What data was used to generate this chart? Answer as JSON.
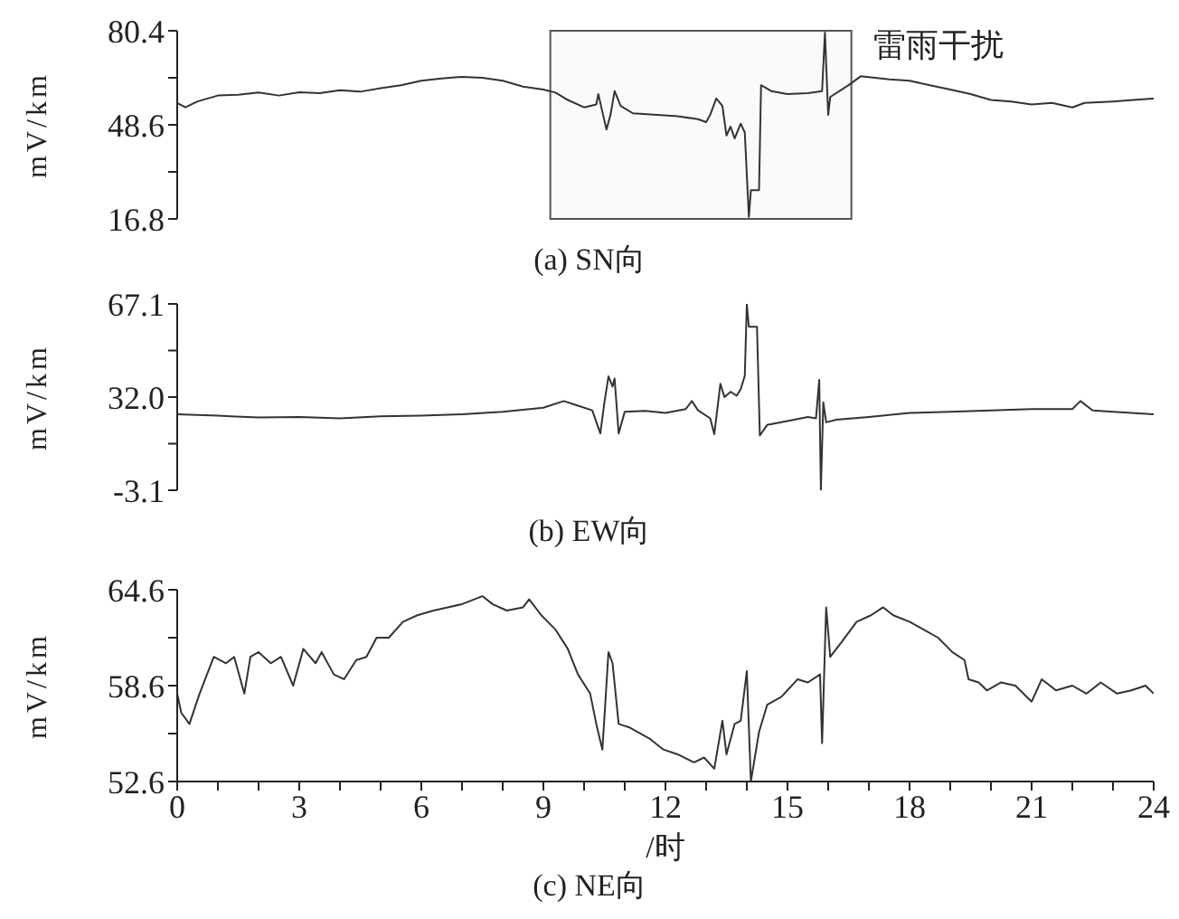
{
  "chart_data": [
    {
      "type": "line",
      "title": "(a) SN向",
      "ylabel": "mV/km",
      "xlim": [
        0,
        24
      ],
      "ylim": [
        16.8,
        80.4
      ],
      "yticks": [
        16.8,
        {
          "value": 32.7,
          "label": null
        },
        48.6,
        {
          "value": 64.5,
          "label": null
        },
        80.4
      ],
      "tick_labels": "y",
      "bands": [
        {
          "axis": "x",
          "from": 9.17,
          "to": 16.57,
          "label": "雷雨干扰",
          "color": "#555555"
        }
      ],
      "series": [
        {
          "color": "#333333",
          "x": [
            0,
            0.2,
            0.5,
            1,
            1.5,
            2,
            2.5,
            3,
            3.5,
            4,
            4.5,
            5,
            5.5,
            6,
            6.5,
            7,
            7.5,
            8,
            8.5,
            9,
            9.3,
            9.6,
            10,
            10.3,
            10.35,
            10.45,
            10.55,
            10.65,
            10.75,
            10.9,
            11.2,
            11.8,
            12.3,
            12.8,
            13.0,
            13.1,
            13.25,
            13.4,
            13.5,
            13.6,
            13.7,
            13.85,
            13.95,
            14.05,
            14.1,
            14.3,
            14.35,
            14.6,
            15,
            15.5,
            15.85,
            15.92,
            16.0,
            16.05,
            16.5,
            16.8,
            17.5,
            18,
            18.5,
            19,
            19.5,
            20,
            20.5,
            21,
            21.5,
            22,
            22.3,
            23,
            23.5,
            24
          ],
          "values": [
            56.0,
            54.5,
            56.5,
            58.5,
            58.8,
            59.5,
            58.5,
            59.6,
            59.3,
            60.3,
            59.8,
            61,
            62,
            63.5,
            64.3,
            64.8,
            64.5,
            63.5,
            61.5,
            60.5,
            59.5,
            57,
            54.5,
            55.5,
            59,
            53,
            47,
            52,
            60,
            55,
            52.5,
            52,
            51.5,
            50.5,
            49.5,
            52,
            57.5,
            55,
            45,
            48,
            44,
            49,
            46,
            17.5,
            26.5,
            26.5,
            62,
            60,
            59,
            59.3,
            60,
            79.8,
            52,
            58,
            62,
            65,
            64,
            63.5,
            62,
            60.5,
            59,
            57,
            56.5,
            55.5,
            56,
            54.5,
            56,
            56.5,
            57,
            57.5
          ]
        }
      ]
    },
    {
      "type": "line",
      "title": "(b) EW向",
      "ylabel": "mV/km",
      "xlim": [
        0,
        24
      ],
      "ylim": [
        -3.1,
        67.1
      ],
      "yticks": [
        -3.1,
        {
          "value": 14.45,
          "label": null
        },
        {
          "value": 32,
          "label": "32.0"
        },
        {
          "value": 49.55,
          "label": null
        },
        67.1
      ],
      "tick_labels": "y",
      "series": [
        {
          "color": "#333333",
          "x": [
            0,
            1,
            2,
            3,
            4,
            5,
            6,
            7,
            8,
            9,
            9.5,
            9.8,
            10.2,
            10.4,
            10.5,
            10.6,
            10.7,
            10.75,
            10.85,
            11,
            11.5,
            12,
            12.5,
            12.65,
            12.8,
            13.1,
            13.2,
            13.35,
            13.45,
            13.6,
            13.75,
            13.85,
            13.95,
            14.0,
            14.05,
            14.25,
            14.32,
            14.5,
            15,
            15.5,
            15.7,
            15.78,
            15.82,
            15.88,
            15.95,
            16.2,
            17,
            18,
            19,
            20,
            21,
            22,
            22.2,
            22.5,
            23,
            24
          ],
          "values": [
            25.5,
            25,
            24.3,
            24.5,
            24,
            24.8,
            25,
            25.5,
            26.5,
            28,
            30.5,
            29,
            27,
            18.3,
            30,
            39.8,
            36,
            39,
            18.3,
            26.5,
            26.8,
            26,
            27.5,
            30.5,
            27,
            24,
            18,
            37,
            32,
            34,
            32.5,
            35,
            40,
            67.1,
            58.5,
            58.5,
            17.5,
            21.5,
            23,
            24.5,
            24,
            38.5,
            -3.1,
            30,
            22.5,
            23.5,
            24.5,
            26,
            26.5,
            27,
            27.5,
            27.5,
            30.5,
            27,
            26.5,
            25.5
          ]
        }
      ]
    },
    {
      "type": "line",
      "title": "(c) NE向",
      "xlabel": "/时",
      "ylabel": "mV/km",
      "xlim": [
        0,
        24
      ],
      "xticks": [
        0,
        {
          "value": 1,
          "label": null
        },
        {
          "value": 2,
          "label": null
        },
        3,
        {
          "value": 4,
          "label": null
        },
        {
          "value": 5,
          "label": null
        },
        6,
        {
          "value": 7,
          "label": null
        },
        {
          "value": 8,
          "label": null
        },
        9,
        {
          "value": 10,
          "label": null
        },
        {
          "value": 11,
          "label": null
        },
        12,
        {
          "value": 13,
          "label": null
        },
        {
          "value": 14,
          "label": null
        },
        15,
        {
          "value": 16,
          "label": null
        },
        {
          "value": 17,
          "label": null
        },
        18,
        {
          "value": 19,
          "label": null
        },
        {
          "value": 20,
          "label": null
        },
        21,
        {
          "value": 22,
          "label": null
        },
        {
          "value": 23,
          "label": null
        },
        24
      ],
      "ylim": [
        52.6,
        64.6
      ],
      "yticks": [
        52.6,
        {
          "value": 55.6,
          "label": null
        },
        58.6,
        {
          "value": 61.6,
          "label": null
        },
        64.6
      ],
      "series": [
        {
          "color": "#333333",
          "x": [
            0,
            0.1,
            0.3,
            0.55,
            0.9,
            1.2,
            1.4,
            1.65,
            1.8,
            2.0,
            2.3,
            2.55,
            2.85,
            3.1,
            3.4,
            3.55,
            3.85,
            4.1,
            4.4,
            4.65,
            4.9,
            5.2,
            5.55,
            5.9,
            6.3,
            6.65,
            7.0,
            7.5,
            7.75,
            8.1,
            8.5,
            8.65,
            8.95,
            9.3,
            9.6,
            9.85,
            10.15,
            10.3,
            10.45,
            10.6,
            10.7,
            10.85,
            11.1,
            11.6,
            11.95,
            12.3,
            12.7,
            12.95,
            13.2,
            13.4,
            13.5,
            13.7,
            13.85,
            14.0,
            14.1,
            14.3,
            14.5,
            14.85,
            15.25,
            15.5,
            15.8,
            15.85,
            15.95,
            16.05,
            16.35,
            16.7,
            17.05,
            17.35,
            17.6,
            18.0,
            18.35,
            18.7,
            19.05,
            19.35,
            19.45,
            19.7,
            19.9,
            20.25,
            20.6,
            21.0,
            21.25,
            21.6,
            22.0,
            22.35,
            22.7,
            23.1,
            23.45,
            23.8,
            24.0
          ],
          "values": [
            58.1,
            56.9,
            56.2,
            58.1,
            60.4,
            60.0,
            60.4,
            58.1,
            60.4,
            60.7,
            60.0,
            60.4,
            58.6,
            60.9,
            60.0,
            60.7,
            59.3,
            59.0,
            60.2,
            60.4,
            61.6,
            61.6,
            62.6,
            63.0,
            63.3,
            63.5,
            63.7,
            64.2,
            63.7,
            63.3,
            63.5,
            64.0,
            63.0,
            62.1,
            60.9,
            59.3,
            58.1,
            56.2,
            54.6,
            60.7,
            60.0,
            56.2,
            56.0,
            55.3,
            54.6,
            54.3,
            53.8,
            54.1,
            53.4,
            56.4,
            54.3,
            56.2,
            56.4,
            59.5,
            52.6,
            55.7,
            57.4,
            57.9,
            59.0,
            58.8,
            59.3,
            55.0,
            63.5,
            60.4,
            61.4,
            62.6,
            63.0,
            63.5,
            63.0,
            62.6,
            62.1,
            61.6,
            60.7,
            60.2,
            59.0,
            58.8,
            58.3,
            58.8,
            58.6,
            57.6,
            59.0,
            58.3,
            58.6,
            58.1,
            58.8,
            58.1,
            58.3,
            58.6,
            58.1
          ]
        }
      ]
    }
  ]
}
